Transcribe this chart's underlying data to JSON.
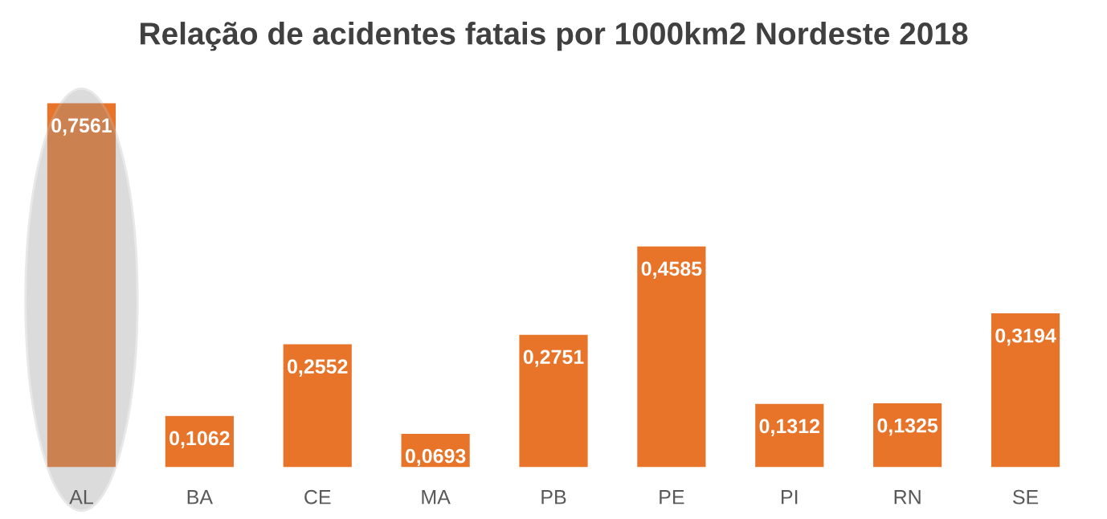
{
  "chart_data": {
    "type": "bar",
    "title": "Relação de acidentes fatais por 1000km2 Nordeste 2018",
    "categories": [
      "AL",
      "BA",
      "CE",
      "MA",
      "PB",
      "PE",
      "PI",
      "RN",
      "SE"
    ],
    "values": [
      0.7561,
      0.1062,
      0.2552,
      0.0693,
      0.2751,
      0.4585,
      0.1312,
      0.1325,
      0.3194
    ],
    "value_labels": [
      "0,7561",
      "0,1062",
      "0,2552",
      "0,0693",
      "0,2751",
      "0,4585",
      "0,1312",
      "0,1325",
      "0,3194"
    ],
    "color": "#e8742a",
    "grid": false,
    "legend": false
  }
}
